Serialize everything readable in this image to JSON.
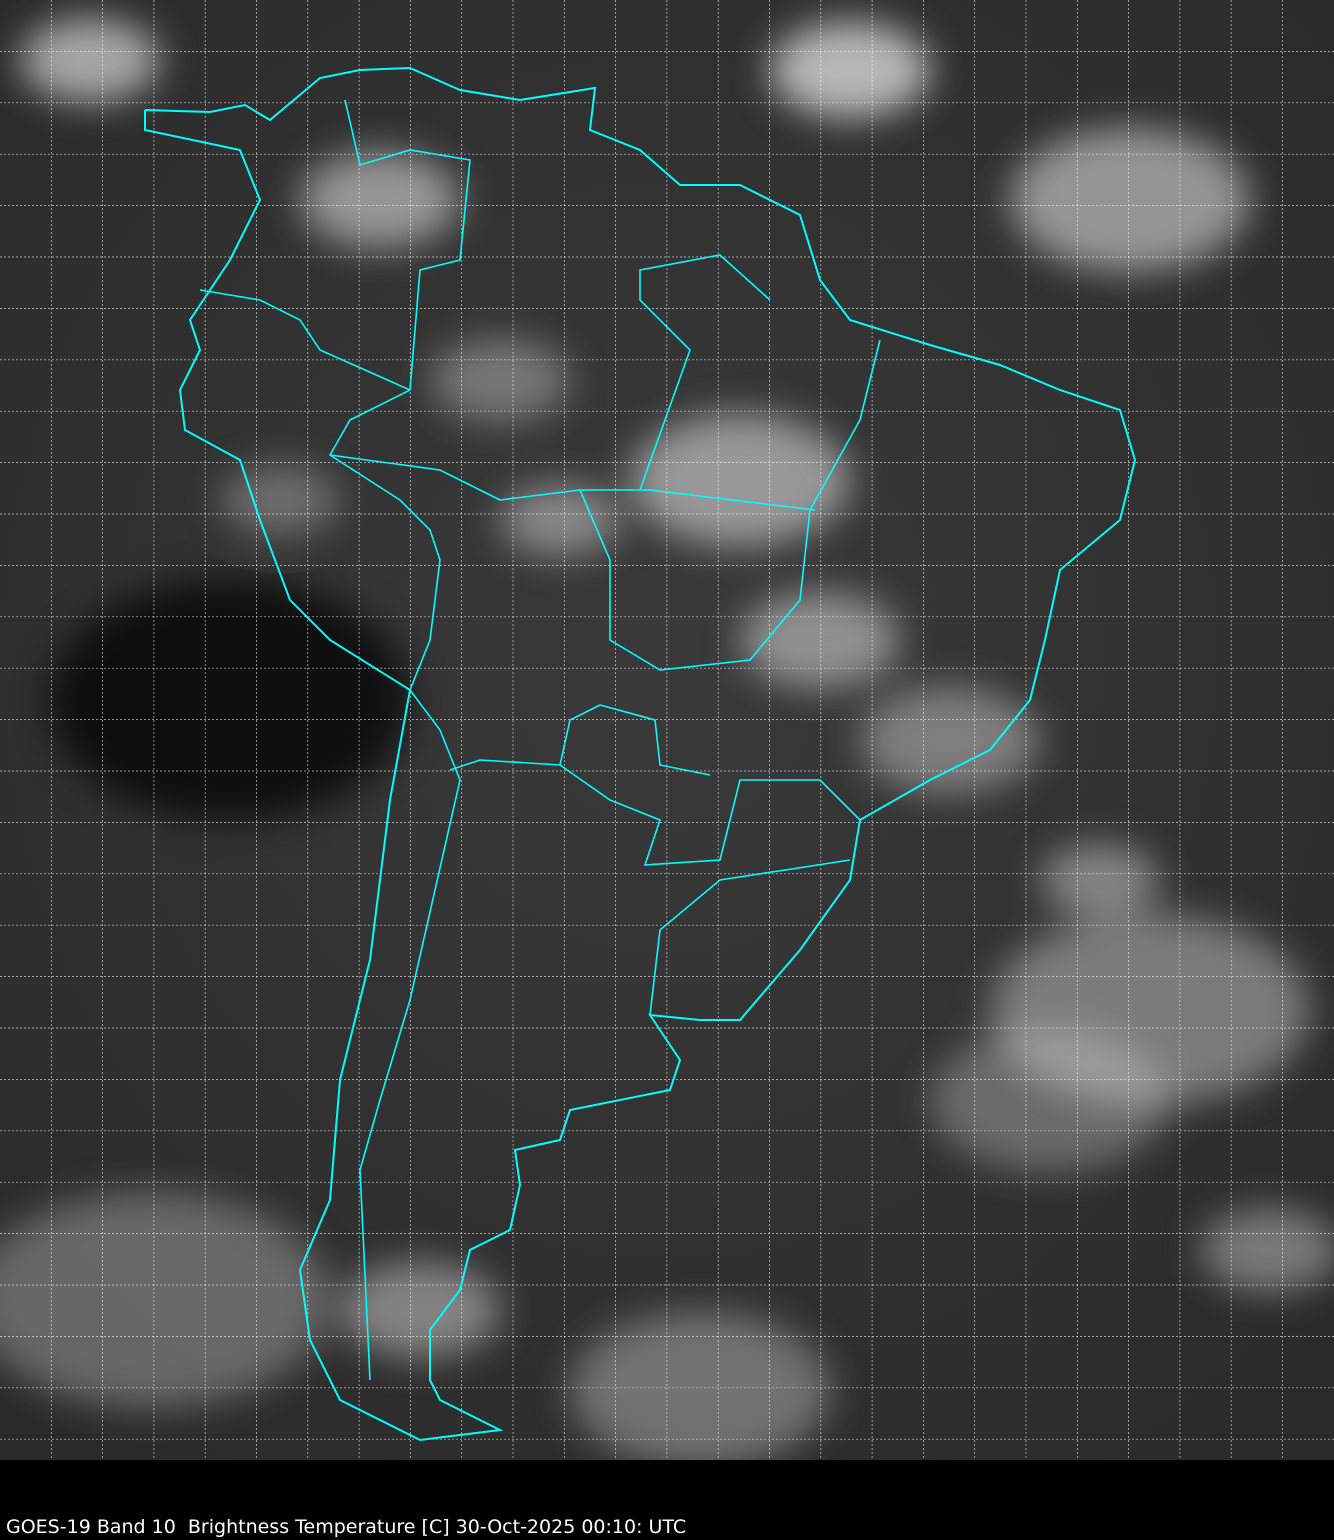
{
  "caption": "GOES-19 Band 10  Brightness Temperature [C] 30-Oct-2025 00:10: UTC",
  "map": {
    "imagery": "grayscale infrared satellite",
    "region": "South America",
    "boundary_color": "#00FFFF",
    "gridline_color": "#FFFFFF",
    "gridlines": "dotted"
  }
}
